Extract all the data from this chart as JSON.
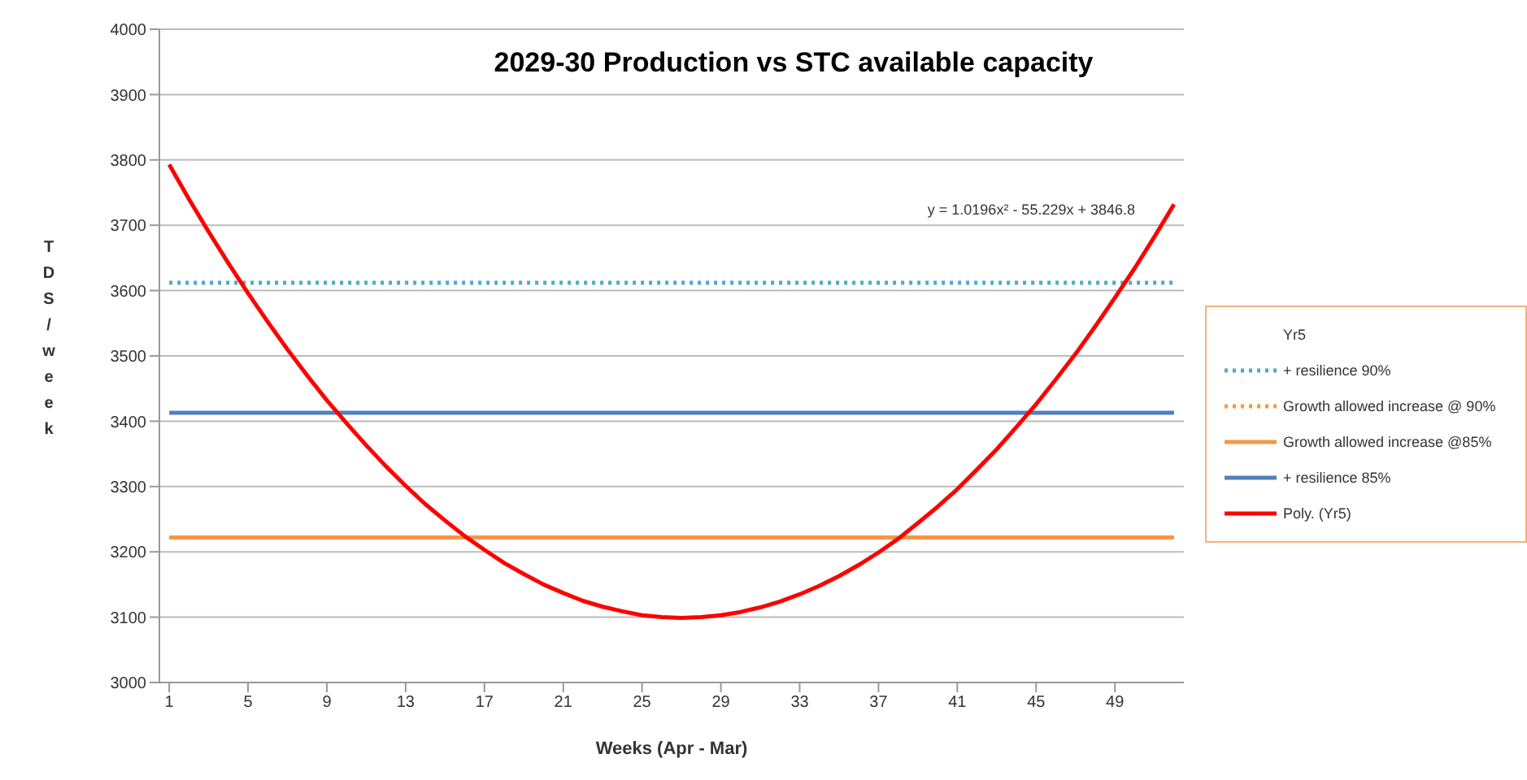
{
  "chart_data": {
    "type": "line",
    "title": "2029-30 Production vs STC available capacity",
    "xlabel": "Weeks (Apr  - Mar)",
    "ylabel": "TDS/week",
    "xlim": [
      0.5,
      52.5
    ],
    "xticks": [
      1,
      5,
      9,
      13,
      17,
      21,
      25,
      29,
      33,
      37,
      41,
      45,
      49
    ],
    "ylim": [
      3000,
      4000
    ],
    "yticks": [
      3000,
      3100,
      3200,
      3300,
      3400,
      3500,
      3600,
      3700,
      3800,
      3900,
      4000
    ],
    "grid": "y",
    "legend": "right",
    "marker": "none",
    "annotations": [
      "y = 1.0196x² - 55.229x + 3846.8"
    ],
    "series": [
      {
        "name": "Yr5"
      },
      {
        "name": "+ resilience 90%",
        "color": "#4bacc6",
        "line_style": "dotted",
        "x": [
          1,
          52
        ],
        "values": [
          3612,
          3612
        ]
      },
      {
        "name": "Growth allowed increase @ 90%",
        "color": "#f79646",
        "line_style": "dotted"
      },
      {
        "name": "Growth allowed increase @85%",
        "color": "#f79646",
        "line_style": "solid",
        "x": [
          1,
          52
        ],
        "values": [
          3222,
          3222
        ]
      },
      {
        "name": "+ resilience 85%",
        "color": "#4f81bd",
        "line_style": "solid",
        "x": [
          1,
          52
        ],
        "values": [
          3413,
          3413
        ]
      },
      {
        "name": "Poly. (Yr5)",
        "color": "#ff0000",
        "line_style": "solid",
        "x": [
          1,
          2,
          3,
          4,
          5,
          6,
          7,
          8,
          9,
          10,
          11,
          12,
          13,
          14,
          15,
          16,
          17,
          18,
          19,
          20,
          21,
          22,
          23,
          24,
          25,
          26,
          27,
          28,
          29,
          30,
          31,
          32,
          33,
          34,
          35,
          36,
          37,
          38,
          39,
          40,
          41,
          42,
          43,
          44,
          45,
          46,
          47,
          48,
          49,
          50,
          51,
          52
        ],
        "values": [
          3793,
          3740,
          3690,
          3642,
          3596,
          3552,
          3510,
          3470,
          3432,
          3397,
          3363,
          3331,
          3301,
          3273,
          3248,
          3224,
          3203,
          3183,
          3166,
          3150,
          3137,
          3125,
          3116,
          3109,
          3103,
          3100,
          3099,
          3100,
          3103,
          3108,
          3115,
          3124,
          3135,
          3148,
          3163,
          3180,
          3199,
          3220,
          3244,
          3269,
          3296,
          3326,
          3357,
          3391,
          3426,
          3464,
          3503,
          3545,
          3589,
          3634,
          3682,
          3732
        ]
      }
    ]
  }
}
